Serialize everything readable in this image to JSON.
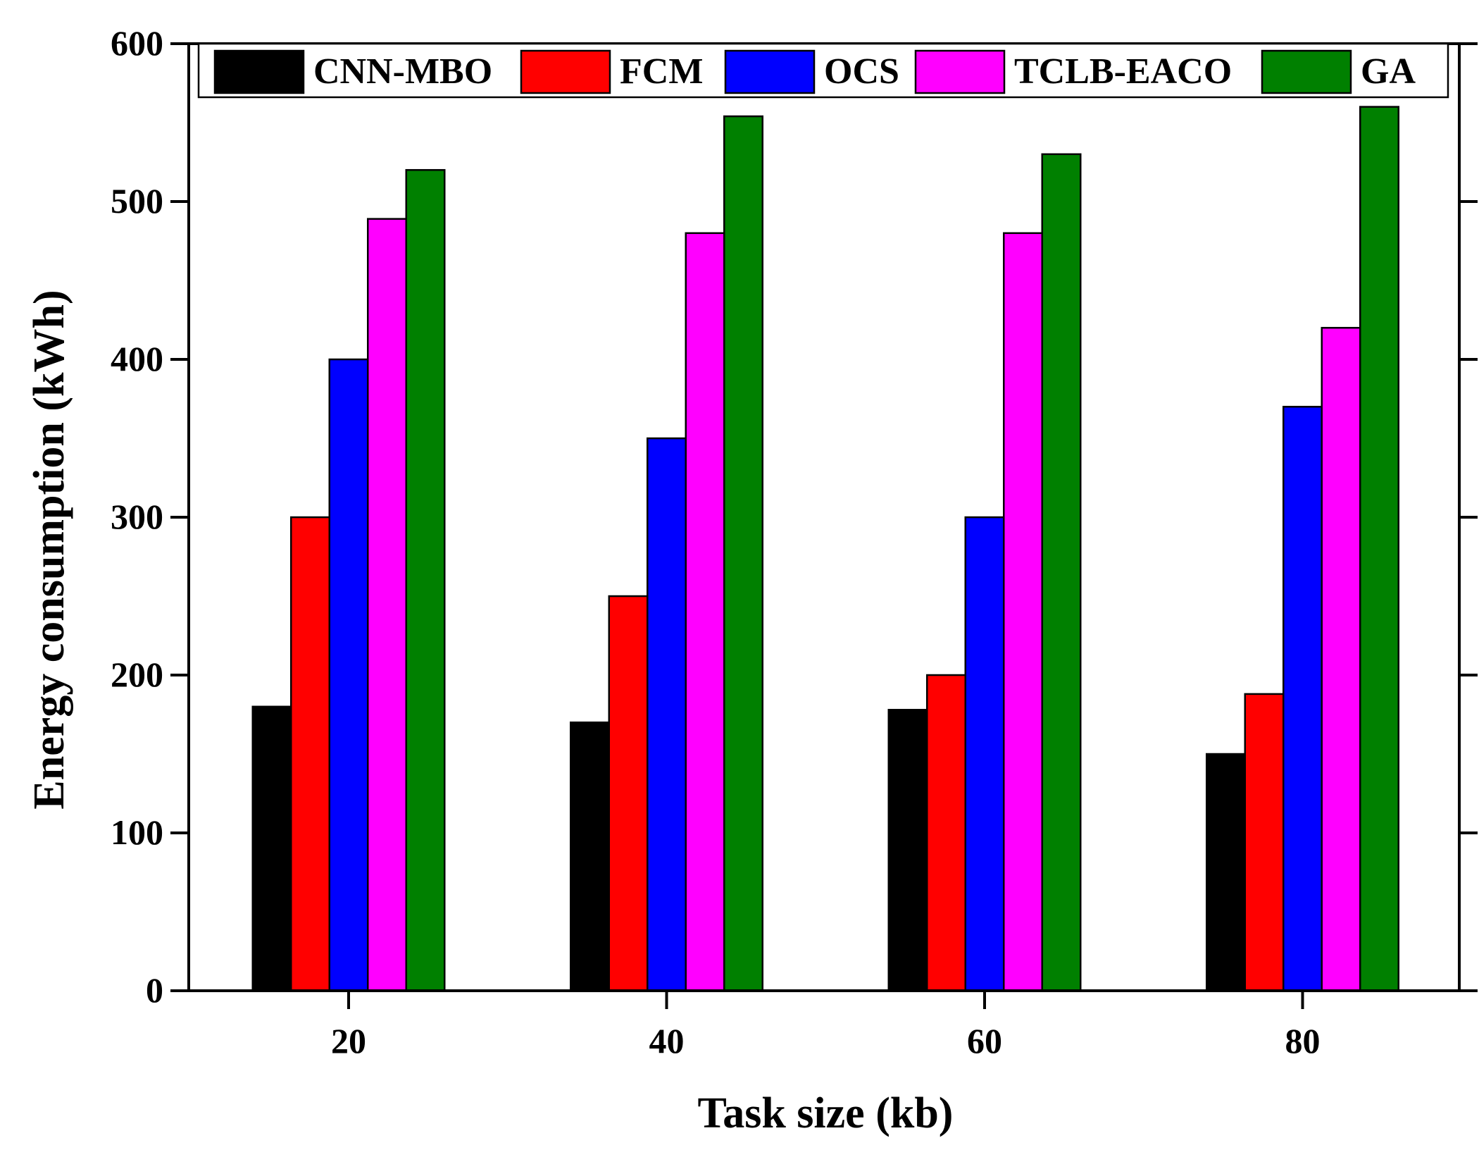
{
  "chart_data": {
    "type": "bar",
    "title": "",
    "xlabel": "Task size (kb)",
    "ylabel": "Energy consumption (kWh)",
    "categories": [
      "20",
      "40",
      "60",
      "80"
    ],
    "ylim": [
      0,
      600
    ],
    "yticks": [
      0,
      100,
      200,
      300,
      400,
      500,
      600
    ],
    "grid": false,
    "legend_position": "top",
    "series": [
      {
        "name": "CNN-MBO",
        "color": "#000000",
        "values": [
          180,
          170,
          178,
          150
        ]
      },
      {
        "name": "FCM",
        "color": "#ff0000",
        "values": [
          300,
          250,
          200,
          188
        ]
      },
      {
        "name": "OCS",
        "color": "#0000ff",
        "values": [
          400,
          350,
          300,
          370
        ]
      },
      {
        "name": "TCLB-EACO",
        "color": "#ff00ff",
        "values": [
          489,
          480,
          480,
          420
        ]
      },
      {
        "name": "GA",
        "color": "#008000",
        "values": [
          520,
          554,
          530,
          560
        ]
      }
    ]
  }
}
